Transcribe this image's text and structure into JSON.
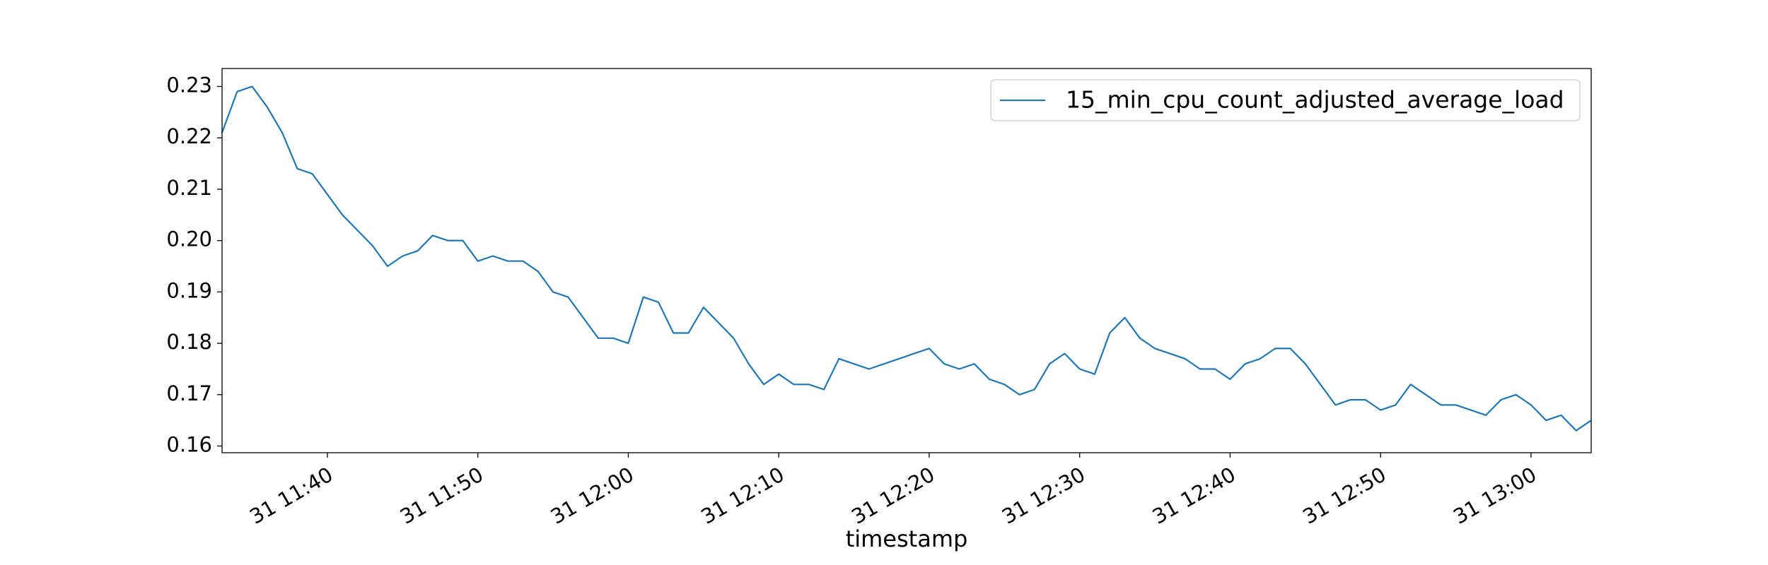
{
  "chart_data": {
    "type": "line",
    "xlabel": "timestamp",
    "x": [
      "31 11:33",
      "31 11:34",
      "31 11:35",
      "31 11:36",
      "31 11:37",
      "31 11:38",
      "31 11:39",
      "31 11:40",
      "31 11:41",
      "31 11:42",
      "31 11:43",
      "31 11:44",
      "31 11:45",
      "31 11:46",
      "31 11:47",
      "31 11:48",
      "31 11:49",
      "31 11:50",
      "31 11:51",
      "31 11:52",
      "31 11:53",
      "31 11:54",
      "31 11:55",
      "31 11:56",
      "31 11:57",
      "31 11:58",
      "31 11:59",
      "31 12:00",
      "31 12:01",
      "31 12:02",
      "31 12:03",
      "31 12:04",
      "31 12:05",
      "31 12:06",
      "31 12:07",
      "31 12:08",
      "31 12:09",
      "31 12:10",
      "31 12:11",
      "31 12:12",
      "31 12:13",
      "31 12:14",
      "31 12:15",
      "31 12:16",
      "31 12:17",
      "31 12:18",
      "31 12:19",
      "31 12:20",
      "31 12:21",
      "31 12:22",
      "31 12:23",
      "31 12:24",
      "31 12:25",
      "31 12:26",
      "31 12:27",
      "31 12:28",
      "31 12:29",
      "31 12:30",
      "31 12:31",
      "31 12:32",
      "31 12:33",
      "31 12:34",
      "31 12:35",
      "31 12:36",
      "31 12:37",
      "31 12:38",
      "31 12:39",
      "31 12:40",
      "31 12:41",
      "31 12:42",
      "31 12:43",
      "31 12:44",
      "31 12:45",
      "31 12:46",
      "31 12:47",
      "31 12:48",
      "31 12:49",
      "31 12:50",
      "31 12:51",
      "31 12:52",
      "31 12:53",
      "31 12:54",
      "31 12:55",
      "31 12:56",
      "31 12:57",
      "31 12:58",
      "31 12:59",
      "31 13:00",
      "31 13:01",
      "31 13:02",
      "31 13:03",
      "31 13:04"
    ],
    "series": [
      {
        "name": "15_min_cpu_count_adjusted_average_load",
        "color": "#1f77b4",
        "values": [
          0.221,
          0.229,
          0.23,
          0.226,
          0.221,
          0.214,
          0.213,
          0.209,
          0.205,
          0.202,
          0.199,
          0.195,
          0.197,
          0.198,
          0.201,
          0.2,
          0.2,
          0.196,
          0.197,
          0.196,
          0.196,
          0.194,
          0.19,
          0.189,
          0.185,
          0.181,
          0.181,
          0.18,
          0.189,
          0.188,
          0.182,
          0.182,
          0.187,
          0.184,
          0.181,
          0.176,
          0.172,
          0.174,
          0.172,
          0.172,
          0.171,
          0.177,
          0.176,
          0.175,
          0.176,
          0.177,
          0.178,
          0.179,
          0.176,
          0.175,
          0.176,
          0.173,
          0.172,
          0.17,
          0.171,
          0.176,
          0.178,
          0.175,
          0.174,
          0.182,
          0.185,
          0.181,
          0.179,
          0.178,
          0.177,
          0.175,
          0.175,
          0.173,
          0.176,
          0.177,
          0.179,
          0.179,
          0.176,
          0.172,
          0.168,
          0.169,
          0.169,
          0.167,
          0.168,
          0.172,
          0.17,
          0.168,
          0.168,
          0.167,
          0.166,
          0.169,
          0.17,
          0.168,
          0.165,
          0.166,
          0.163,
          0.165
        ]
      }
    ],
    "xlim": [
      "31 11:33",
      "31 13:04"
    ],
    "xticks": [
      "31 11:40",
      "31 11:50",
      "31 12:00",
      "31 12:10",
      "31 12:20",
      "31 12:30",
      "31 12:40",
      "31 12:50",
      "31 13:00"
    ],
    "ylim": [
      0.1587,
      0.2335
    ],
    "yticks": [
      0.16,
      0.17,
      0.18,
      0.19,
      {
        "value": 0.2,
        "label": "0.20"
      },
      0.21,
      0.22,
      0.23
    ],
    "grid": false,
    "legend": "upper right"
  }
}
